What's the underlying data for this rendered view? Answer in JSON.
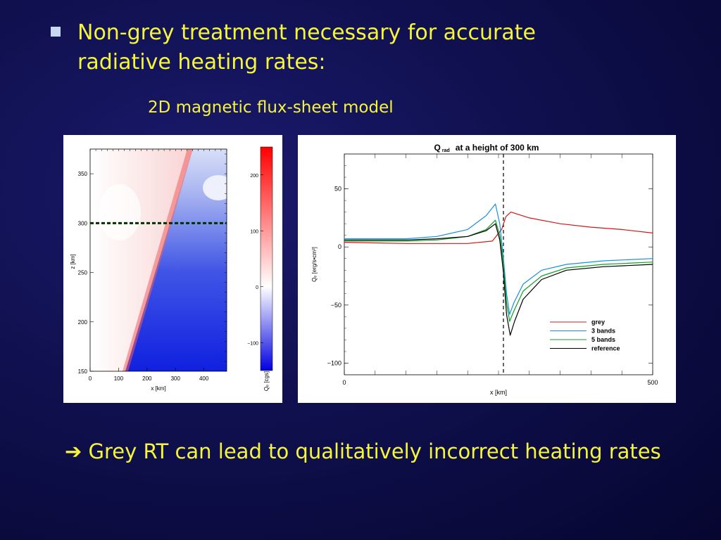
{
  "slide": {
    "bullet_text_line1": "Non-grey treatment necessary for accurate",
    "bullet_text_line2": "radiative heating rates:",
    "subtitle": "2D magnetic flux-sheet model",
    "conclusion": "➔ Grey RT can lead to qualitatively incorrect heating rates",
    "colors": {
      "background": "#10104f",
      "text": "#f5f53a"
    }
  },
  "chart_data": [
    {
      "type": "heatmap",
      "xlabel": "x [km]",
      "ylabel": "z [km]",
      "xticks": [
        "0",
        "100",
        "200",
        "300",
        "400"
      ],
      "yticks": [
        "150",
        "200",
        "250",
        "300",
        "350"
      ],
      "xlim": [
        0,
        480
      ],
      "ylim": [
        150,
        375
      ],
      "marker_height": 300,
      "colorbar": {
        "label": "Qₑ [cgs]",
        "ticks": [
          "200",
          "100",
          "0",
          "−100"
        ],
        "range": [
          -150,
          250
        ],
        "colors": [
          "#0000e0",
          "#ffffff",
          "#ff0000"
        ]
      }
    },
    {
      "type": "line",
      "title_main": "Q",
      "title_sub": "rad",
      "title_rest": "at a height of 300 km",
      "xlabel": "x [km]",
      "ylabel": "Qₑ [erg/s•cm³]",
      "xticks": [
        "0",
        "500"
      ],
      "yticks": [
        "50",
        "0",
        "−50",
        "−100"
      ],
      "xlim": [
        0,
        500
      ],
      "ylim": [
        -110,
        80
      ],
      "vline_x": 258,
      "series": [
        {
          "name": "grey",
          "color": "#d01818",
          "points": [
            [
              0,
              4
            ],
            [
              100,
              3
            ],
            [
              200,
              3
            ],
            [
              240,
              5
            ],
            [
              255,
              15
            ],
            [
              262,
              26
            ],
            [
              270,
              30
            ],
            [
              300,
              25
            ],
            [
              350,
              20
            ],
            [
              400,
              17
            ],
            [
              450,
              15
            ],
            [
              500,
              12
            ]
          ]
        },
        {
          "name": "3 bands",
          "color": "#1890e0",
          "points": [
            [
              0,
              7
            ],
            [
              100,
              7
            ],
            [
              150,
              9
            ],
            [
              200,
              15
            ],
            [
              230,
              27
            ],
            [
              245,
              37
            ],
            [
              252,
              20
            ],
            [
              258,
              -10
            ],
            [
              263,
              -40
            ],
            [
              268,
              -58
            ],
            [
              275,
              -48
            ],
            [
              290,
              -32
            ],
            [
              320,
              -20
            ],
            [
              360,
              -15
            ],
            [
              420,
              -12
            ],
            [
              500,
              -10
            ]
          ]
        },
        {
          "name": "5 bands",
          "color": "#10a020",
          "points": [
            [
              0,
              5
            ],
            [
              100,
              5
            ],
            [
              150,
              6
            ],
            [
              200,
              9
            ],
            [
              230,
              15
            ],
            [
              245,
              23
            ],
            [
              252,
              10
            ],
            [
              258,
              -15
            ],
            [
              263,
              -48
            ],
            [
              268,
              -64
            ],
            [
              275,
              -55
            ],
            [
              290,
              -38
            ],
            [
              320,
              -25
            ],
            [
              360,
              -18
            ],
            [
              420,
              -15
            ],
            [
              500,
              -13
            ]
          ]
        },
        {
          "name": "reference",
          "color": "#000000",
          "points": [
            [
              0,
              6
            ],
            [
              100,
              6
            ],
            [
              150,
              7
            ],
            [
              200,
              9
            ],
            [
              230,
              14
            ],
            [
              245,
              20
            ],
            [
              252,
              6
            ],
            [
              258,
              -22
            ],
            [
              263,
              -58
            ],
            [
              269,
              -76
            ],
            [
              276,
              -64
            ],
            [
              290,
              -45
            ],
            [
              320,
              -28
            ],
            [
              360,
              -20
            ],
            [
              420,
              -17
            ],
            [
              500,
              -15
            ]
          ]
        }
      ]
    }
  ]
}
